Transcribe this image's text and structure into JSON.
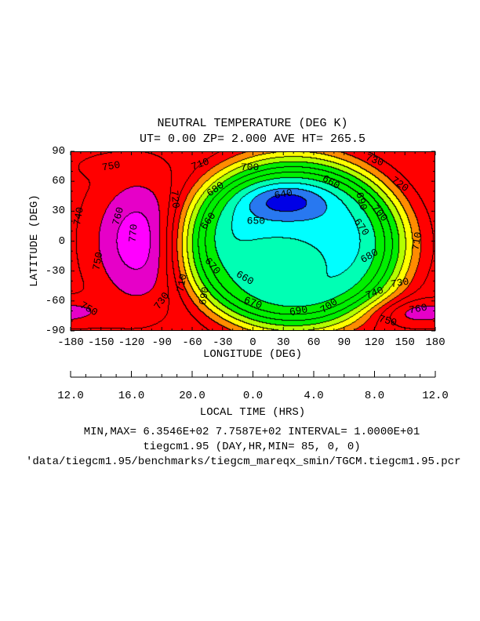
{
  "chart_data": {
    "type": "heatmap",
    "subtype": "filled-contour",
    "title": "NEUTRAL TEMPERATURE (DEG K)",
    "subtitle": "UT= 0.00 ZP=  2.000 AVE HT= 265.5",
    "xlabel": "LONGITUDE (DEG)",
    "ylabel": "LATITUDE (DEG)",
    "xlim": [
      -180,
      180
    ],
    "ylim": [
      -90,
      90
    ],
    "x_ticks": [
      "-180",
      "-150",
      "-120",
      "-90",
      "-60",
      "-30",
      "0",
      "30",
      "60",
      "90",
      "120",
      "150",
      "180"
    ],
    "y_ticks": [
      "90",
      "60",
      "30",
      "0",
      "-30",
      "-60",
      "-90"
    ],
    "secondary_xlabel": "LOCAL TIME (HRS)",
    "secondary_x_ticks": [
      "12.0",
      "16.0",
      "20.0",
      "0.0",
      "4.0",
      "8.0",
      "12.0"
    ],
    "contour_interval": 10,
    "min": 635.46,
    "max": 775.87,
    "color_bands": [
      {
        "below": 640,
        "color": "#0000e6"
      },
      {
        "below": 650,
        "color": "#2878f0"
      },
      {
        "below": 660,
        "color": "#00ffff"
      },
      {
        "below": 670,
        "color": "#00ffb4"
      },
      {
        "below": 700,
        "color": "#00f000"
      },
      {
        "below": 710,
        "color": "#b4ff00"
      },
      {
        "below": 720,
        "color": "#ffff00"
      },
      {
        "below": 730,
        "color": "#ff8c00"
      },
      {
        "below": 760,
        "color": "#ff0000"
      },
      {
        "below": 770,
        "color": "#e600c8"
      },
      {
        "below": 999,
        "color": "#ff00ff"
      }
    ],
    "field_model": {
      "base": 745,
      "components": [
        {
          "kind": "well",
          "lon": 40,
          "lat": -3,
          "slon": 112,
          "slat": 88,
          "amp": -92,
          "power": 5
        },
        {
          "kind": "gauss",
          "lon": 32,
          "lat": 40,
          "slon": 28,
          "slat": 12,
          "amp": -21
        },
        {
          "kind": "gauss",
          "lon": 25,
          "lat": -22,
          "slon": 35,
          "slat": 20,
          "amp": 16
        },
        {
          "kind": "gauss",
          "lon": -113,
          "lat": 0,
          "slon": 32,
          "slat": 45,
          "amp": 31
        },
        {
          "kind": "gauss",
          "lon": 165,
          "lat": -72,
          "slon": 35,
          "slat": 10,
          "amp": 20
        },
        {
          "kind": "gauss",
          "lon": -195,
          "lat": -72,
          "slon": 35,
          "slat": 10,
          "amp": 20
        },
        {
          "kind": "gauss",
          "lon": -140,
          "lat": 75,
          "slon": 25,
          "slat": 8,
          "amp": 8
        }
      ]
    },
    "contour_labels": [
      {
        "text": "750",
        "lon": -140,
        "lat": 75
      },
      {
        "text": "740",
        "lon": -172,
        "lat": 25
      },
      {
        "text": "760",
        "lon": -133,
        "lat": 25
      },
      {
        "text": "770",
        "lon": -118,
        "lat": 8
      },
      {
        "text": "750",
        "lon": -153,
        "lat": -20
      },
      {
        "text": "750",
        "lon": -162,
        "lat": -68
      },
      {
        "text": "720",
        "lon": -77,
        "lat": 42
      },
      {
        "text": "710",
        "lon": -70,
        "lat": -42
      },
      {
        "text": "730",
        "lon": -90,
        "lat": -60
      },
      {
        "text": "710",
        "lon": -52,
        "lat": 77
      },
      {
        "text": "700",
        "lon": -3,
        "lat": 74
      },
      {
        "text": "680",
        "lon": -37,
        "lat": 52
      },
      {
        "text": "660",
        "lon": -44,
        "lat": 20
      },
      {
        "text": "640",
        "lon": 30,
        "lat": 47
      },
      {
        "text": "650",
        "lon": 3,
        "lat": 20
      },
      {
        "text": "660",
        "lon": 77,
        "lat": 59
      },
      {
        "text": "690",
        "lon": 107,
        "lat": 40
      },
      {
        "text": "700",
        "lon": 125,
        "lat": 28
      },
      {
        "text": "670",
        "lon": 107,
        "lat": 14
      },
      {
        "text": "710",
        "lon": 162,
        "lat": 0
      },
      {
        "text": "680",
        "lon": 115,
        "lat": -15
      },
      {
        "text": "730",
        "lon": 120,
        "lat": 81
      },
      {
        "text": "720",
        "lon": 145,
        "lat": 57
      },
      {
        "text": "670",
        "lon": -40,
        "lat": -25
      },
      {
        "text": "660",
        "lon": -8,
        "lat": -37
      },
      {
        "text": "670",
        "lon": 0,
        "lat": -62
      },
      {
        "text": "690",
        "lon": 45,
        "lat": -70
      },
      {
        "text": "700",
        "lon": 75,
        "lat": -65
      },
      {
        "text": "730",
        "lon": 145,
        "lat": -42
      },
      {
        "text": "740",
        "lon": 120,
        "lat": -52
      },
      {
        "text": "760",
        "lon": 163,
        "lat": -68
      },
      {
        "text": "750",
        "lon": 133,
        "lat": -80
      },
      {
        "text": "690",
        "lon": -48,
        "lat": -55
      }
    ]
  },
  "footer": {
    "minmax": "MIN,MAX=  6.3546E+02  7.7587E+02 INTERVAL=  1.0000E+01",
    "model": "tiegcm1.95 (DAY,HR,MIN= 85, 0, 0)",
    "path": "'data/tiegcm1.95/benchmarks/tiegcm_mareqx_smin/TGCM.tiegcm1.95.pcr"
  }
}
